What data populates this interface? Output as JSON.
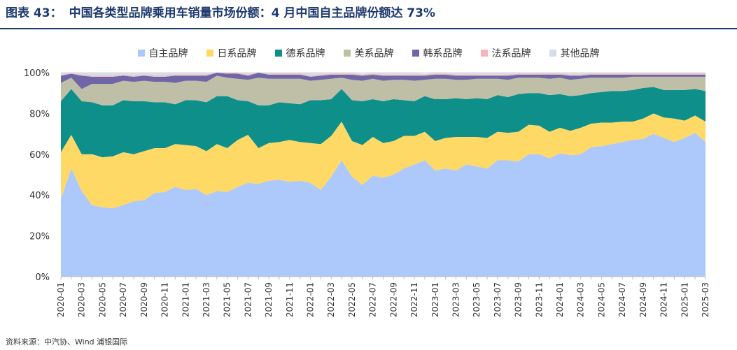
{
  "title": {
    "label": "图表 43：",
    "text": "中国各类型品牌乘用车销量市场份额：4 月中国自主品牌份额达 73%"
  },
  "source": "资料来源：中汽协、Wind 浦银国际",
  "chart_data": {
    "type": "area",
    "stacked": true,
    "ylim": [
      0,
      100
    ],
    "yticks": [
      "0%",
      "20%",
      "40%",
      "60%",
      "80%",
      "100%"
    ],
    "legend_position": "top",
    "grid": true,
    "categories": [
      "2020-01",
      "2020-02",
      "2020-03",
      "2020-04",
      "2020-05",
      "2020-06",
      "2020-07",
      "2020-08",
      "2020-09",
      "2020-10",
      "2020-11",
      "2020-12",
      "2021-01",
      "2021-02",
      "2021-03",
      "2021-04",
      "2021-05",
      "2021-06",
      "2021-07",
      "2021-08",
      "2021-09",
      "2021-10",
      "2021-11",
      "2021-12",
      "2022-01",
      "2022-02",
      "2022-03",
      "2022-04",
      "2022-05",
      "2022-06",
      "2022-07",
      "2022-08",
      "2022-09",
      "2022-10",
      "2022-11",
      "2022-12",
      "2023-01",
      "2023-02",
      "2023-03",
      "2023-04",
      "2023-05",
      "2023-06",
      "2023-07",
      "2023-08",
      "2023-09",
      "2023-10",
      "2023-11",
      "2023-12",
      "2024-01",
      "2024-02",
      "2024-03",
      "2024-04",
      "2024-05",
      "2024-06",
      "2024-07",
      "2024-08",
      "2024-09",
      "2024-10",
      "2024-11",
      "2024-12",
      "2025-01",
      "2025-02",
      "2025-03"
    ],
    "xtick_labels": [
      "2020-01",
      "2020-03",
      "2020-05",
      "2020-07",
      "2020-09",
      "2020-11",
      "2021-01",
      "2021-03",
      "2021-05",
      "2021-07",
      "2021-09",
      "2021-11",
      "2022-01",
      "2022-03",
      "2022-05",
      "2022-07",
      "2022-09",
      "2022-11",
      "2023-01",
      "2023-03",
      "2023-05",
      "2023-07",
      "2023-09",
      "2023-11",
      "2024-01",
      "2024-03",
      "2024-05",
      "2024-07",
      "2024-09",
      "2024-11",
      "2025-01",
      "2025-03"
    ],
    "series": [
      {
        "name": "自主品牌",
        "color": "#adc8fb",
        "values": [
          38,
          53,
          42,
          35,
          34,
          33.5,
          35,
          37,
          37.5,
          41,
          41.5,
          44,
          42.5,
          43,
          40,
          42,
          41.5,
          44,
          46,
          45.5,
          47,
          47.5,
          46.5,
          47,
          46,
          42.5,
          49,
          57,
          49,
          45,
          49.5,
          48.5,
          50,
          53,
          55,
          57,
          52,
          53,
          52,
          55,
          54,
          53,
          57,
          57,
          56.5,
          60,
          60,
          58,
          60.5,
          59.5,
          60,
          63.5,
          64,
          65,
          66,
          67,
          67.5,
          70,
          68,
          66,
          68,
          70.5,
          66
        ]
      },
      {
        "name": "日系品牌",
        "color": "#ffd966",
        "values": [
          23,
          16.5,
          18,
          25,
          24.5,
          25.5,
          26,
          23,
          24,
          22,
          21.5,
          21,
          22,
          21,
          21.5,
          23,
          21.5,
          23,
          23.5,
          17.5,
          18.5,
          18.5,
          20.5,
          19,
          19.5,
          22.5,
          20,
          19,
          17.5,
          19.5,
          19,
          17,
          16.5,
          16,
          14,
          14,
          14.5,
          15,
          16.5,
          13.5,
          14.5,
          15,
          14,
          13.5,
          14.5,
          14.5,
          14,
          13,
          12.5,
          12,
          13,
          11.5,
          11.5,
          10.5,
          10,
          9,
          10,
          10,
          10,
          11.5,
          8.5,
          8.5,
          10
        ]
      },
      {
        "name": "德系品牌",
        "color": "#0e8f8a",
        "values": [
          25,
          22.5,
          26,
          25.5,
          25.5,
          25,
          25.5,
          26,
          24.5,
          22.5,
          22.5,
          19.5,
          22,
          22.5,
          24,
          23.5,
          25.5,
          19.5,
          16.5,
          21,
          18.5,
          19.5,
          18,
          18.5,
          21,
          21.5,
          18,
          16,
          20,
          21.5,
          18.5,
          20.5,
          20.5,
          17.5,
          17,
          17.5,
          20.5,
          19,
          19,
          18.5,
          19,
          19,
          18,
          17.5,
          18.5,
          15.5,
          16,
          18,
          16.5,
          17,
          16,
          15,
          15,
          15.5,
          15,
          15.5,
          15,
          13,
          13.5,
          14,
          15,
          13,
          15
        ]
      },
      {
        "name": "美系品牌",
        "color": "#bfbfa8",
        "values": [
          9,
          5.5,
          6,
          9,
          10.5,
          10.5,
          9.5,
          9.5,
          10,
          10,
          10,
          10.5,
          9.5,
          9.5,
          10,
          10,
          9,
          10.5,
          10.5,
          13.5,
          13,
          11.5,
          12,
          12.5,
          9.5,
          10,
          10,
          5.5,
          10,
          10,
          10,
          10,
          9.5,
          10,
          10,
          8,
          10,
          10,
          9,
          9.5,
          9.5,
          10,
          8,
          8.5,
          8,
          7.5,
          7.5,
          8,
          8,
          8,
          8,
          7.5,
          7,
          6.5,
          6.5,
          6.5,
          5.5,
          5,
          6.5,
          6.5,
          6.5,
          6,
          7
        ]
      },
      {
        "name": "韩系品牌",
        "color": "#6f66a8",
        "values": [
          3.5,
          2,
          6.5,
          3.5,
          3.5,
          3.5,
          2.5,
          2.5,
          2.5,
          2.5,
          2.5,
          3.5,
          2.5,
          2.5,
          3,
          2.5,
          2,
          2.5,
          2,
          2.5,
          2,
          2,
          2,
          2,
          2,
          2,
          2,
          1.5,
          2.5,
          2.5,
          2,
          2.5,
          2,
          2,
          2.5,
          2,
          2,
          2,
          2,
          2,
          1.5,
          1.5,
          1.5,
          2,
          1.5,
          1.5,
          1.5,
          2,
          1.5,
          2,
          1.5,
          1.5,
          1.5,
          1.5,
          1.5,
          1,
          1,
          1,
          1,
          1,
          1,
          1,
          1
        ]
      },
      {
        "name": "法系品牌",
        "color": "#f4b6b8",
        "values": [
          0.3,
          0.3,
          0.5,
          0.5,
          0.5,
          0.5,
          0.5,
          0.5,
          0.5,
          0.5,
          0.5,
          0.5,
          0.5,
          0.5,
          0.5,
          0.5,
          0.5,
          0.5,
          0.5,
          0.5,
          0.5,
          0.5,
          0.5,
          0.5,
          0.5,
          0.5,
          0.5,
          0.5,
          0.5,
          0.5,
          0.5,
          0.5,
          0.5,
          0.5,
          0.5,
          0.5,
          0.5,
          0.5,
          0.5,
          0.5,
          0.5,
          0.5,
          0.5,
          0.5,
          0.5,
          0.5,
          0.5,
          0.5,
          0.5,
          0.5,
          0.5,
          0.5,
          0.5,
          0.5,
          0.5,
          0.5,
          0.5,
          0.5,
          0.5,
          0.5,
          0.5,
          0.5,
          0.5
        ]
      },
      {
        "name": "其他品牌",
        "color": "#d4dde8",
        "values": [
          1.2,
          0.2,
          1,
          1.5,
          1.5,
          1.5,
          1,
          1.5,
          1,
          2.5,
          1.5,
          1,
          1,
          1,
          1,
          0.5,
          1,
          0.5,
          1,
          0.5,
          0.5,
          0.5,
          0.5,
          0.5,
          1.5,
          1,
          0.5,
          0.5,
          0.5,
          0.5,
          0.5,
          1,
          1,
          1,
          1,
          0.5,
          0.5,
          0.5,
          1,
          1,
          1,
          1,
          1,
          1,
          0.5,
          0.5,
          0.5,
          0.5,
          0.5,
          1,
          1,
          1,
          0.5,
          0.5,
          0.5,
          0.5,
          0.5,
          0.5,
          0.5,
          0.5,
          0.5,
          0.5,
          0.5
        ]
      }
    ]
  }
}
